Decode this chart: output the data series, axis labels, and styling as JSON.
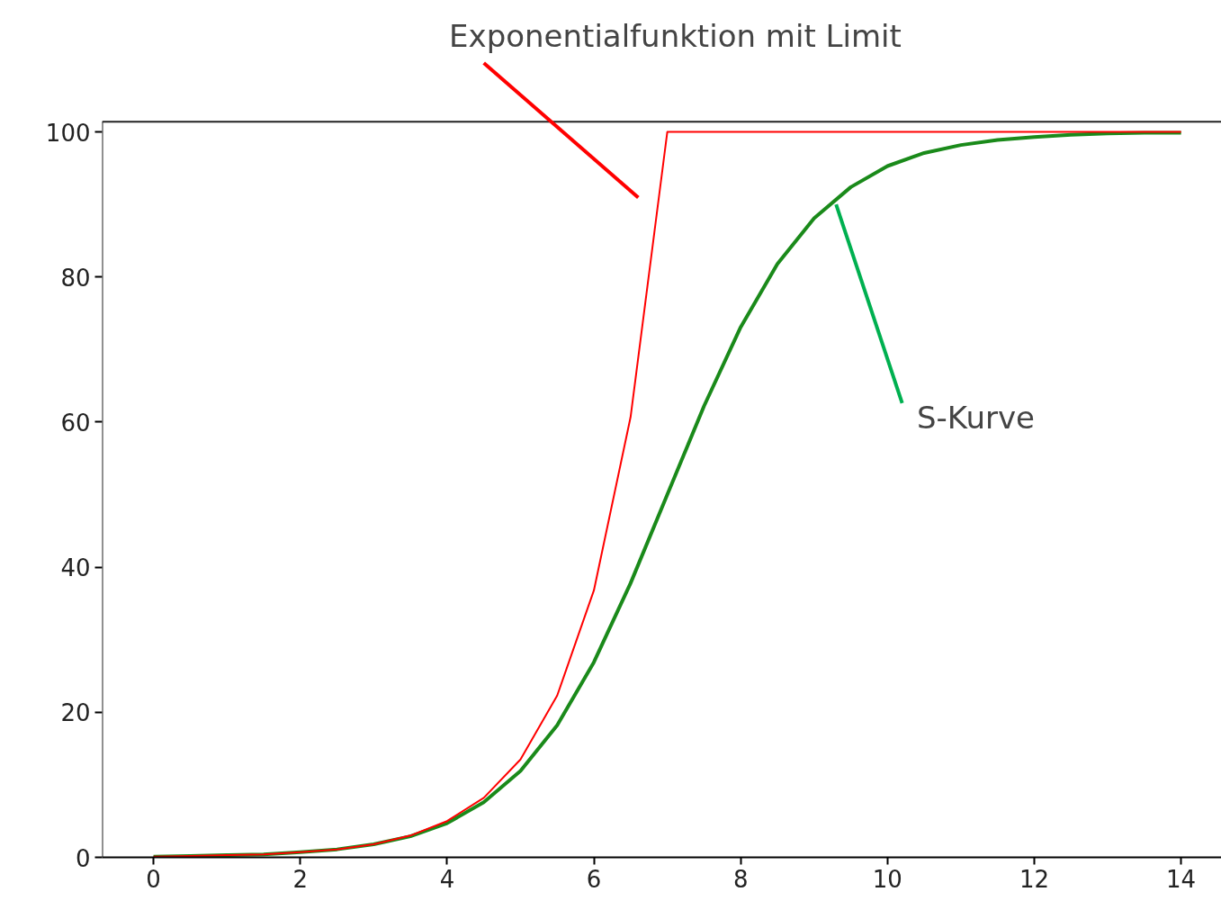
{
  "chart_data": {
    "type": "line",
    "xlim": [
      -0.7,
      14.55
    ],
    "ylim": [
      0,
      101.4
    ],
    "xticks": [
      0,
      2,
      4,
      6,
      8,
      10,
      12,
      14
    ],
    "yticks": [
      0,
      20,
      40,
      60,
      80,
      100
    ],
    "grid": false,
    "marker": "none",
    "line_style": "solid",
    "series": [
      {
        "color": "#ff0000",
        "x": [
          0,
          0.5,
          1,
          1.5,
          2,
          2.5,
          3,
          3.5,
          4,
          4.5,
          5,
          5.5,
          6,
          6.5,
          7,
          14
        ],
        "values": [
          0.1,
          0.2,
          0.3,
          0.4,
          0.7,
          1.1,
          1.8,
          3.0,
          5.0,
          8.2,
          13.5,
          22.3,
          36.8,
          60.7,
          100,
          100
        ]
      },
      {
        "color": "#1a8a1a",
        "x": [
          0,
          0.5,
          1,
          1.5,
          2,
          2.5,
          3,
          3.5,
          4,
          4.5,
          5,
          5.5,
          6,
          6.5,
          7,
          7.5,
          8,
          8.5,
          9,
          9.5,
          10,
          10.5,
          11,
          11.5,
          12,
          12.5,
          13,
          13.5,
          14
        ],
        "values": [
          0.1,
          0.2,
          0.3,
          0.4,
          0.7,
          1.1,
          1.8,
          2.9,
          4.7,
          7.6,
          11.9,
          18.2,
          26.9,
          37.8,
          50.0,
          62.2,
          73.1,
          81.8,
          88.1,
          92.4,
          95.3,
          97.1,
          98.2,
          98.9,
          99.3,
          99.6,
          99.8,
          99.9,
          99.9
        ]
      }
    ],
    "annotations": [
      "Exponentialfunktion mit Limit",
      {
        "text": "S-Kurve",
        "x": 9.3,
        "y": 90
      }
    ]
  }
}
